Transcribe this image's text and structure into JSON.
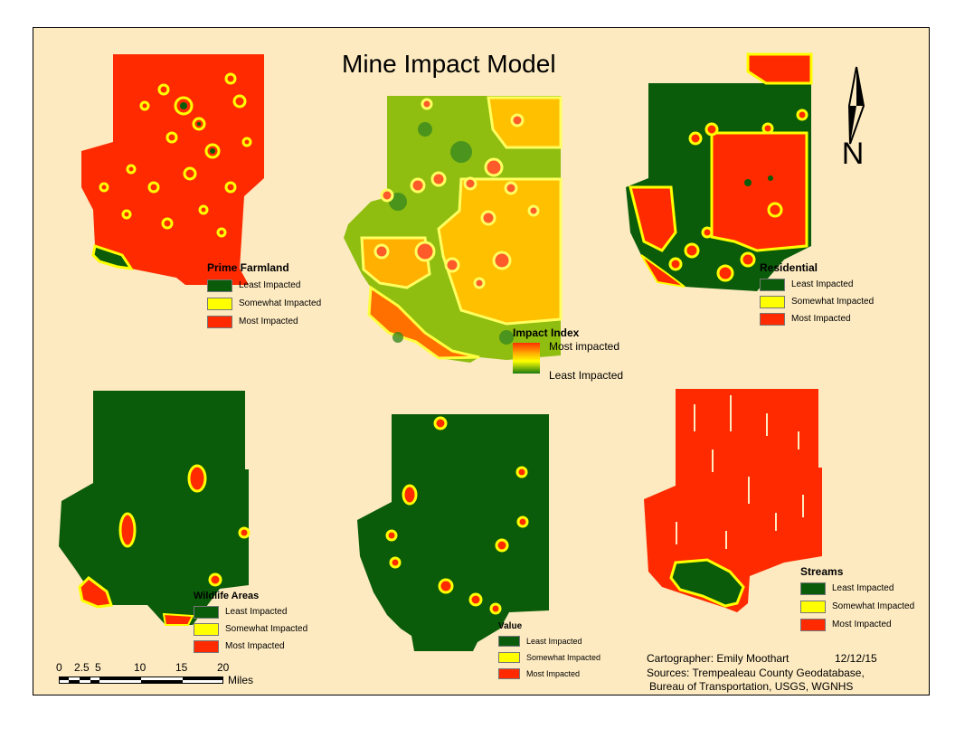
{
  "map": {
    "title": "Mine Impact Model",
    "north_label": "N",
    "colors": {
      "background": "#fdeac0",
      "least": "#0a5c0a",
      "somewhat": "#ffff00",
      "most": "#ff2200",
      "index_mid": "#ffb000",
      "index_low": "#90c000"
    },
    "legends": {
      "prime_farmland": {
        "title": "Prime Farmland",
        "items": [
          "Least Impacted",
          "Somewhat Impacted",
          "Most Impacted"
        ]
      },
      "residential": {
        "title": "Residential",
        "items": [
          "Least Impacted",
          "Somewhat Impacted",
          "Most Impacted"
        ]
      },
      "wildlife": {
        "title": "Wildlife Areas",
        "items": [
          "Least Impacted",
          "Somewhat Impacted",
          "Most Impacted"
        ]
      },
      "value": {
        "title": "Value",
        "items": [
          "Least Impacted",
          "Somewhat Impacted",
          "Most Impacted"
        ]
      },
      "streams": {
        "title": "Streams",
        "items": [
          "Least Impacted",
          "Somewhat Impacted",
          "Most Impacted"
        ]
      },
      "impact_index": {
        "title": "Impact Index",
        "high": "Most impacted",
        "low": "Least Impacted"
      }
    },
    "scale_bar": {
      "ticks": [
        "0",
        "2.5",
        "5",
        "10",
        "15",
        "20"
      ],
      "unit": "Miles"
    },
    "credits": {
      "cartographer": "Cartographer: Emily Moothart",
      "date": "12/12/15",
      "sources_line1": "Sources: Trempealeau County Geodatabase,",
      "sources_line2": "Bureau of Transportation, USGS, WGNHS"
    }
  }
}
